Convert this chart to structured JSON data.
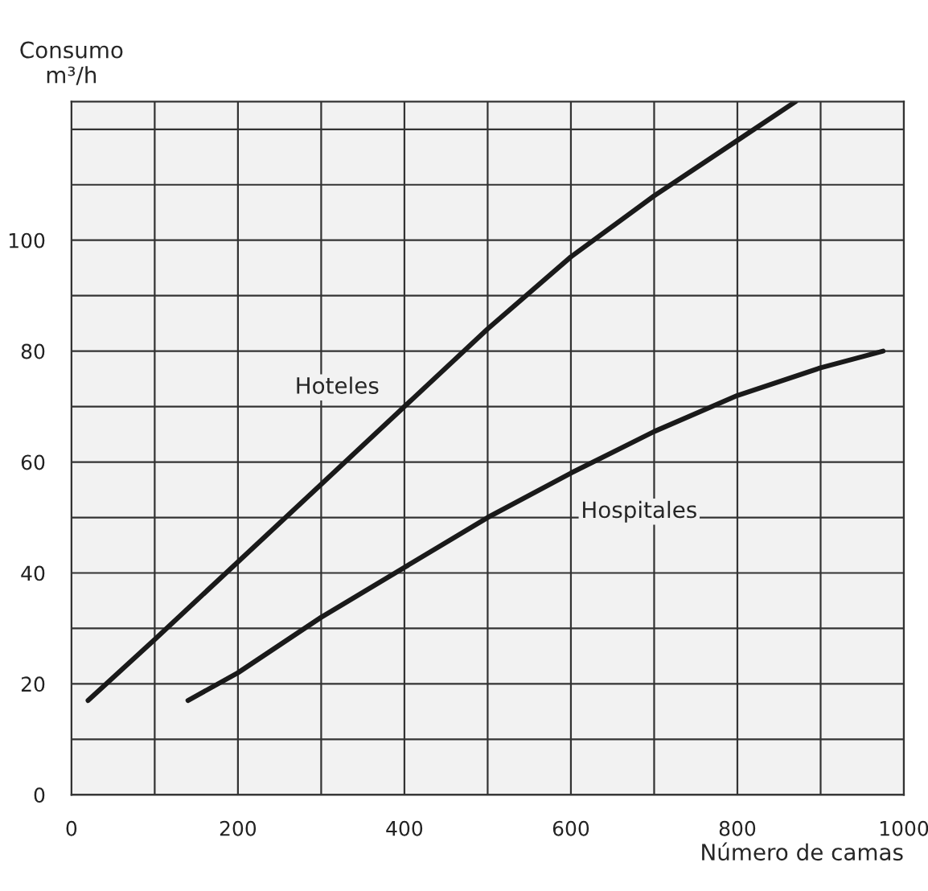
{
  "chart_data": {
    "type": "line",
    "xlabel": "Número de camas",
    "ylabel": "Consumo\nm³/h",
    "series": [
      {
        "name": "Hoteles",
        "color": "#1a1a1a",
        "x": [
          20,
          100,
          200,
          300,
          400,
          500,
          600,
          700,
          800,
          870
        ],
        "values": [
          17,
          28,
          42,
          56,
          70,
          84,
          97,
          108,
          118,
          125
        ]
      },
      {
        "name": "Hospitales",
        "color": "#1a1a1a",
        "x": [
          140,
          200,
          300,
          400,
          500,
          600,
          700,
          800,
          900,
          975
        ],
        "values": [
          17,
          22,
          32,
          41,
          50,
          58,
          65.5,
          72,
          77,
          80
        ]
      }
    ],
    "xlim": [
      0,
      1000
    ],
    "ylim": [
      0,
      125
    ],
    "xticks": [
      0,
      {
        "value": 100,
        "label": null
      },
      200,
      {
        "value": 300,
        "label": null
      },
      400,
      {
        "value": 500,
        "label": null
      },
      600,
      {
        "value": 700,
        "label": null
      },
      800,
      {
        "value": 900,
        "label": null
      },
      1000
    ],
    "yticks": [
      0,
      {
        "value": 10,
        "label": null
      },
      20,
      {
        "value": 30,
        "label": null
      },
      40,
      {
        "value": 50,
        "label": null
      },
      60,
      {
        "value": 70,
        "label": null
      },
      80,
      {
        "value": 90,
        "label": null
      },
      100,
      {
        "value": 110,
        "label": null
      },
      {
        "value": 120,
        "label": null
      }
    ],
    "grid": true,
    "legend": false,
    "marker": "none",
    "line_style": "solid"
  }
}
